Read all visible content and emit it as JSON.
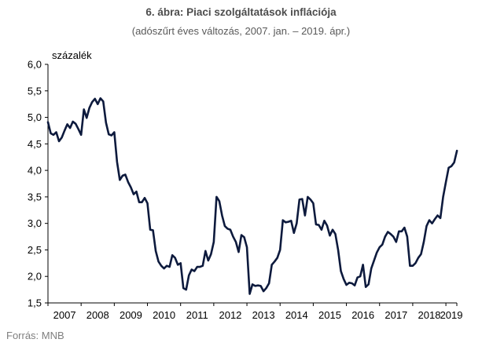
{
  "chart_data": {
    "type": "line",
    "title": "6. ábra: Piaci szolgáltatások inflációja",
    "subtitle": "(adószűrt éves változás, 2007. jan. – 2019. ápr.)",
    "ylabel": "százalék",
    "source": "Forrás: MNB",
    "ylim": [
      1.5,
      6.0
    ],
    "yticks": [
      "6,0",
      "5,5",
      "5,0",
      "4,5",
      "4,0",
      "3,5",
      "3,0",
      "2,5",
      "2,0",
      "1,5"
    ],
    "ytick_values": [
      6.0,
      5.5,
      5.0,
      4.5,
      4.0,
      3.5,
      3.0,
      2.5,
      2.0,
      1.5
    ],
    "xlim": [
      2007,
      2019.33
    ],
    "xticks": [
      "2007",
      "2008",
      "2009",
      "2010",
      "2011",
      "2012",
      "2013",
      "2014",
      "2015",
      "2016",
      "2017",
      "2018",
      "2019"
    ],
    "grid": false,
    "line_color": "#0d1a3d",
    "series": [
      {
        "values": [
          4.91,
          4.7,
          4.67,
          4.72,
          4.55,
          4.62,
          4.75,
          4.87,
          4.8,
          4.92,
          4.88,
          4.78,
          4.67,
          5.15,
          4.99,
          5.18,
          5.29,
          5.35,
          5.25,
          5.36,
          5.3,
          4.9,
          4.68,
          4.66,
          4.72,
          4.16,
          3.82,
          3.9,
          3.92,
          3.78,
          3.68,
          3.55,
          3.6,
          3.4,
          3.4,
          3.48,
          3.38,
          2.88,
          2.87,
          2.48,
          2.28,
          2.2,
          2.15,
          2.2,
          2.18,
          2.4,
          2.35,
          2.22,
          2.25,
          1.78,
          1.75,
          2.02,
          2.13,
          2.1,
          2.18,
          2.18,
          2.2,
          2.48,
          2.3,
          2.42,
          2.65,
          3.5,
          3.42,
          3.15,
          2.95,
          2.9,
          2.88,
          2.75,
          2.65,
          2.46,
          2.78,
          2.74,
          2.55,
          1.67,
          1.85,
          1.82,
          1.83,
          1.82,
          1.72,
          1.78,
          1.87,
          2.22,
          2.28,
          2.35,
          2.5,
          3.06,
          3.02,
          3.03,
          3.05,
          2.82,
          3.0,
          3.45,
          3.46,
          3.15,
          3.5,
          3.45,
          3.38,
          2.98,
          2.97,
          2.88,
          3.05,
          2.96,
          2.77,
          2.88,
          2.8,
          2.5,
          2.1,
          1.95,
          1.84,
          1.88,
          1.87,
          1.83,
          1.98,
          2.0,
          2.22,
          1.8,
          1.85,
          2.15,
          2.3,
          2.45,
          2.55,
          2.6,
          2.75,
          2.84,
          2.8,
          2.75,
          2.65,
          2.85,
          2.85,
          2.92,
          2.75,
          2.2,
          2.2,
          2.25,
          2.35,
          2.42,
          2.65,
          2.95,
          3.06,
          3.0,
          3.08,
          3.15,
          3.1,
          3.5,
          3.78,
          4.05,
          4.08,
          4.15,
          4.37
        ]
      }
    ]
  }
}
